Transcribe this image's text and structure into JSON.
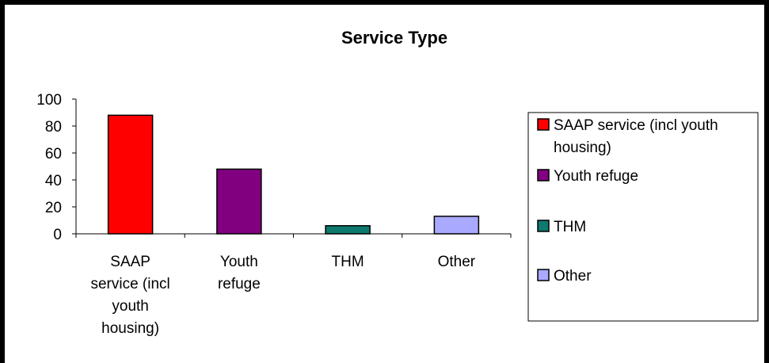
{
  "chart_data": {
    "type": "bar",
    "title": "Service Type",
    "categories": [
      "SAAP service (incl youth housing)",
      "Youth refuge",
      "THM",
      "Other"
    ],
    "category_label_lines": [
      [
        "SAAP",
        "service (incl",
        "youth",
        "housing)"
      ],
      [
        "Youth",
        "refuge"
      ],
      [
        "THM"
      ],
      [
        "Other"
      ]
    ],
    "values": [
      88,
      48,
      6,
      13
    ],
    "colors": [
      "#ff0000",
      "#800080",
      "#0e7a6e",
      "#a9a9ff"
    ],
    "ylim": [
      0,
      100
    ],
    "yticks": [
      0,
      20,
      40,
      60,
      80,
      100
    ],
    "grid": false,
    "legend_position": "right",
    "legend": [
      {
        "lines": [
          "SAAP service (incl youth",
          "housing)"
        ],
        "color": "#ff0000"
      },
      {
        "lines": [
          "Youth refuge"
        ],
        "color": "#800080"
      },
      {
        "lines": [
          "THM"
        ],
        "color": "#0e7a6e"
      },
      {
        "lines": [
          "Other"
        ],
        "color": "#a9a9ff"
      }
    ]
  }
}
